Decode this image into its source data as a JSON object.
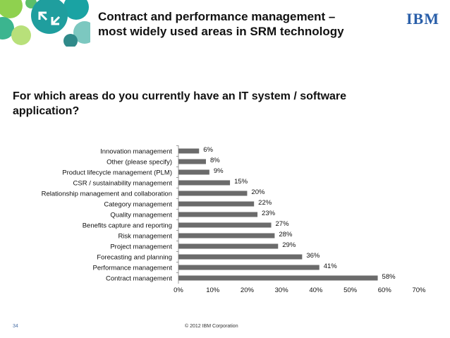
{
  "slide": {
    "title_line1": "Contract and performance management –",
    "title_line2": "most widely used areas in SRM technology",
    "logo_text": "IBM",
    "question": "For which areas do you currently have an IT system / software application?",
    "page_number": "34",
    "copyright": "© 2012 IBM Corporation"
  },
  "colors": {
    "bar": "#6b6b6b",
    "accent_teal": "#1aa3a3",
    "brand_blue": "#2a5fa9"
  },
  "chart_data": {
    "type": "bar",
    "orientation": "horizontal",
    "categories": [
      "Innovation management",
      "Other (please specify)",
      "Product lifecycle management (PLM)",
      "CSR / sustainability management",
      "Relationship management and collaboration",
      "Category management",
      "Quality management",
      "Benefits capture and reporting",
      "Risk management",
      "Project management",
      "Forecasting and planning",
      "Performance management",
      "Contract management"
    ],
    "values": [
      6,
      8,
      9,
      15,
      20,
      22,
      23,
      27,
      28,
      29,
      36,
      41,
      58
    ],
    "value_labels": [
      "6%",
      "8%",
      "9%",
      "15%",
      "20%",
      "22%",
      "23%",
      "27%",
      "28%",
      "29%",
      "36%",
      "41%",
      "58%"
    ],
    "xlim": [
      0,
      70
    ],
    "x_ticks": [
      "0%",
      "10%",
      "20%",
      "30%",
      "40%",
      "50%",
      "60%",
      "70%"
    ],
    "grid": false
  }
}
